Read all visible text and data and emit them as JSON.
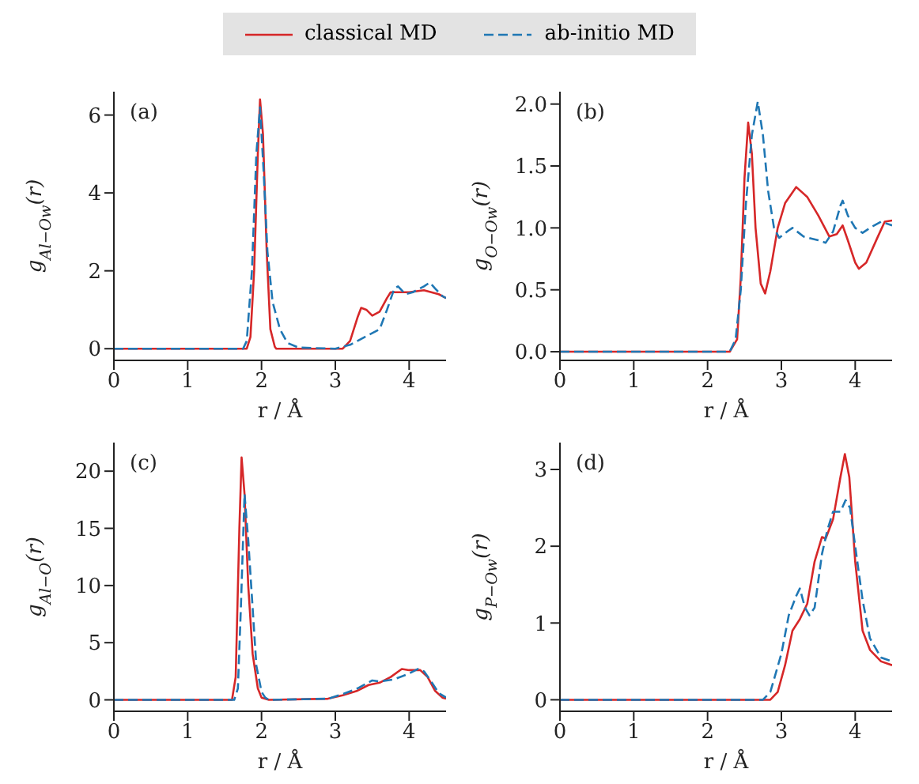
{
  "chart_data": [
    {
      "type": "line",
      "xlabel": "r / Å",
      "ylabel": "g$_{Al−Ow}$(r)",
      "annotations": [
        "(a)"
      ],
      "xlim": [
        0,
        4.5
      ],
      "xticks": [
        0,
        1,
        2,
        3,
        4
      ],
      "ylim": [
        -0.3,
        6.6
      ],
      "yticks": [
        0,
        2,
        4,
        6
      ],
      "legend": "top",
      "marker": "none",
      "series": [
        {
          "name": "classical MD",
          "color": "#d62728",
          "line_style": "solid",
          "x": [
            0,
            1.8,
            1.85,
            1.9,
            1.95,
            1.98,
            2.02,
            2.07,
            2.12,
            2.18,
            2.2,
            3.1,
            3.2,
            3.3,
            3.35,
            3.42,
            3.5,
            3.6,
            3.7,
            3.75,
            4.0,
            4.2,
            4.4,
            4.5
          ],
          "values": [
            0,
            0,
            0.3,
            2,
            5,
            6.4,
            5.5,
            2.5,
            0.5,
            0.05,
            0,
            0,
            0.2,
            0.8,
            1.05,
            1.0,
            0.85,
            0.95,
            1.3,
            1.45,
            1.45,
            1.5,
            1.4,
            1.3
          ]
        },
        {
          "name": "ab-initio MD",
          "color": "#1f77b4",
          "line_style": "dashed",
          "x": [
            0,
            1.75,
            1.8,
            1.87,
            1.93,
            1.98,
            2.03,
            2.08,
            2.15,
            2.25,
            2.35,
            2.5,
            3.0,
            3.2,
            3.4,
            3.6,
            3.7,
            3.8,
            3.85,
            3.95,
            4.05,
            4.2,
            4.28,
            4.35,
            4.45,
            4.5
          ],
          "values": [
            0,
            0,
            0.2,
            2,
            5,
            6.2,
            4.5,
            2.5,
            1.2,
            0.5,
            0.15,
            0.03,
            0,
            0.1,
            0.3,
            0.5,
            1.0,
            1.55,
            1.6,
            1.4,
            1.45,
            1.6,
            1.7,
            1.55,
            1.35,
            1.3
          ]
        }
      ]
    },
    {
      "type": "line",
      "xlabel": "r / Å",
      "ylabel": "g$_{O−Ow}$(r)",
      "annotations": [
        "(b)"
      ],
      "xlim": [
        0,
        4.5
      ],
      "xticks": [
        0,
        1,
        2,
        3,
        4
      ],
      "ylim": [
        -0.07,
        2.1
      ],
      "yticks": [
        {
          "value": 0,
          "label": "0.0"
        },
        {
          "value": 0.5,
          "label": "0.5"
        },
        {
          "value": 1,
          "label": "1.0"
        },
        {
          "value": 1.5,
          "label": "1.5"
        },
        {
          "value": 2,
          "label": "2.0"
        }
      ],
      "marker": "none",
      "series": [
        {
          "color": "#d62728",
          "line_style": "solid",
          "x": [
            0,
            2.3,
            2.4,
            2.45,
            2.5,
            2.55,
            2.6,
            2.65,
            2.72,
            2.78,
            2.85,
            2.95,
            3.05,
            3.2,
            3.35,
            3.5,
            3.65,
            3.75,
            3.83,
            3.9,
            4.0,
            4.05,
            4.15,
            4.3,
            4.4,
            4.5
          ],
          "values": [
            0,
            0,
            0.1,
            0.6,
            1.4,
            1.85,
            1.6,
            1.0,
            0.55,
            0.47,
            0.65,
            1.0,
            1.2,
            1.33,
            1.25,
            1.1,
            0.93,
            0.95,
            1.02,
            0.9,
            0.72,
            0.67,
            0.72,
            0.92,
            1.05,
            1.06
          ]
        },
        {
          "color": "#1f77b4",
          "line_style": "dashed",
          "x": [
            0,
            2.3,
            2.38,
            2.45,
            2.52,
            2.6,
            2.68,
            2.75,
            2.82,
            2.9,
            2.97,
            3.1,
            3.15,
            3.3,
            3.5,
            3.6,
            3.7,
            3.8,
            3.83,
            3.9,
            4.0,
            4.1,
            4.2,
            4.35,
            4.5
          ],
          "values": [
            0,
            0,
            0.1,
            0.5,
            1.2,
            1.75,
            2.02,
            1.75,
            1.3,
            1.0,
            0.92,
            0.98,
            1.0,
            0.93,
            0.9,
            0.88,
            0.97,
            1.18,
            1.22,
            1.1,
            1.0,
            0.96,
            1.0,
            1.05,
            1.02
          ]
        }
      ]
    },
    {
      "type": "line",
      "xlabel": "r / Å",
      "ylabel": "g$_{Al−O}$(r)",
      "annotations": [
        "(c)"
      ],
      "xlim": [
        0,
        4.5
      ],
      "xticks": [
        0,
        1,
        2,
        3,
        4
      ],
      "ylim": [
        -1,
        22.5
      ],
      "yticks": [
        0,
        5,
        10,
        15,
        20
      ],
      "marker": "none",
      "series": [
        {
          "color": "#d62728",
          "line_style": "solid",
          "x": [
            0,
            1.6,
            1.65,
            1.7,
            1.73,
            1.77,
            1.82,
            1.88,
            1.95,
            2.0,
            2.1,
            2.9,
            3.1,
            3.3,
            3.45,
            3.6,
            3.75,
            3.9,
            4.0,
            4.15,
            4.25,
            4.35,
            4.45,
            4.5
          ],
          "values": [
            0,
            0,
            2,
            15,
            21.2,
            18,
            10,
            4,
            1,
            0.2,
            0,
            0.1,
            0.4,
            0.8,
            1.3,
            1.5,
            2.0,
            2.7,
            2.6,
            2.6,
            2.0,
            0.8,
            0.2,
            0.1
          ]
        },
        {
          "color": "#1f77b4",
          "line_style": "dashed",
          "x": [
            0,
            1.63,
            1.68,
            1.72,
            1.77,
            1.82,
            1.88,
            1.93,
            2.0,
            2.05,
            2.1,
            2.9,
            3.1,
            3.3,
            3.5,
            3.6,
            3.8,
            4.0,
            4.12,
            4.2,
            4.3,
            4.4,
            4.5
          ],
          "values": [
            0,
            0,
            1,
            8,
            18,
            14,
            8,
            3,
            0.7,
            0.2,
            0,
            0.1,
            0.5,
            1.0,
            1.7,
            1.6,
            1.8,
            2.3,
            2.7,
            2.5,
            1.6,
            0.6,
            0.2
          ]
        }
      ]
    },
    {
      "type": "line",
      "xlabel": "r / Å",
      "ylabel": "g$_{P−Ow}$(r)",
      "annotations": [
        "(d)"
      ],
      "xlim": [
        0,
        4.5
      ],
      "xticks": [
        0,
        1,
        2,
        3,
        4
      ],
      "ylim": [
        -0.15,
        3.35
      ],
      "yticks": [
        0,
        1,
        2,
        3
      ],
      "marker": "none",
      "series": [
        {
          "color": "#d62728",
          "line_style": "solid",
          "x": [
            0,
            2.85,
            2.95,
            3.05,
            3.15,
            3.25,
            3.35,
            3.45,
            3.55,
            3.6,
            3.7,
            3.8,
            3.86,
            3.92,
            4.0,
            4.1,
            4.2,
            4.35,
            4.5
          ],
          "values": [
            0,
            0,
            0.1,
            0.45,
            0.9,
            1.05,
            1.25,
            1.8,
            2.12,
            2.1,
            2.35,
            2.9,
            3.2,
            2.9,
            1.8,
            0.9,
            0.65,
            0.5,
            0.45
          ]
        },
        {
          "color": "#1f77b4",
          "line_style": "dashed",
          "x": [
            0,
            2.75,
            2.85,
            3.0,
            3.1,
            3.2,
            3.25,
            3.32,
            3.38,
            3.45,
            3.55,
            3.62,
            3.7,
            3.8,
            3.87,
            3.93,
            4.0,
            4.1,
            4.2,
            4.35,
            4.5
          ],
          "values": [
            0,
            0,
            0.1,
            0.6,
            1.1,
            1.35,
            1.45,
            1.2,
            1.1,
            1.2,
            1.9,
            2.2,
            2.45,
            2.45,
            2.6,
            2.5,
            2.0,
            1.3,
            0.8,
            0.55,
            0.5
          ]
        }
      ]
    }
  ]
}
